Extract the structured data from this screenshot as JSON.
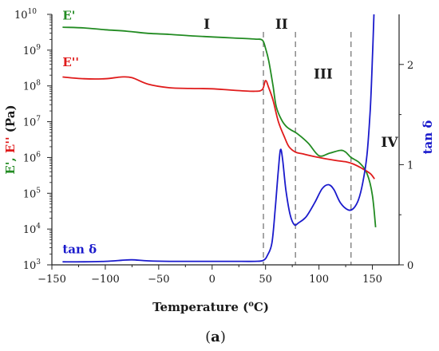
{
  "chart_data": {
    "type": "line",
    "xlabel_main": "Temperature (",
    "xlabel_unit_sup": "o",
    "xlabel_tail": "C)",
    "ylabel_left_parts": [
      "E', ",
      "E'' ",
      "(Pa)"
    ],
    "ylabel_left_colors": [
      "#228b22",
      "#e01b1b",
      "#1a1a1a"
    ],
    "ylabel_right": "tan δ",
    "ylabel_right_color": "#1a1acc",
    "subfigure_label_open": "(",
    "subfigure_label_letter": "a",
    "subfigure_label_close": ")",
    "xlim": [
      -150,
      175
    ],
    "ylim_left_log10": [
      3,
      10
    ],
    "ylim_right": [
      0,
      2.5
    ],
    "x_ticks": [
      {
        "v": -150,
        "label": "−150"
      },
      {
        "v": -100,
        "label": "−100"
      },
      {
        "v": -50,
        "label": "−50"
      },
      {
        "v": 0,
        "label": "0"
      },
      {
        "v": 50,
        "label": "50"
      },
      {
        "v": 100,
        "label": "100"
      },
      {
        "v": 150,
        "label": "150"
      }
    ],
    "y_left_ticks": [
      {
        "exp": 3,
        "base": "10",
        "sup": "3"
      },
      {
        "exp": 4,
        "base": "10",
        "sup": "4"
      },
      {
        "exp": 5,
        "base": "10",
        "sup": "5"
      },
      {
        "exp": 6,
        "base": "10",
        "sup": "6"
      },
      {
        "exp": 7,
        "base": "10",
        "sup": "7"
      },
      {
        "exp": 8,
        "base": "10",
        "sup": "8"
      },
      {
        "exp": 9,
        "base": "10",
        "sup": "9"
      },
      {
        "exp": 10,
        "base": "10",
        "sup": "10"
      }
    ],
    "y_right_ticks": [
      {
        "v": 0,
        "label": "0"
      },
      {
        "v": 1,
        "label": "1"
      },
      {
        "v": 2,
        "label": "2"
      }
    ],
    "vlines": [
      48,
      78,
      130
    ],
    "regions": [
      {
        "label": "I",
        "x": -5,
        "log10": 9.6
      },
      {
        "label": "II",
        "x": 65,
        "log10": 9.6
      },
      {
        "label": "III",
        "x": 104,
        "log10": 8.2
      },
      {
        "label": "IV",
        "x": 166,
        "log10": 6.3
      }
    ],
    "series": [
      {
        "name": "E'",
        "color": "#228b22",
        "axis": "left",
        "label_pos": {
          "x": -140,
          "log10": 9.85
        },
        "points": [
          [
            -140,
            9.64
          ],
          [
            -120,
            9.62
          ],
          [
            -100,
            9.57
          ],
          [
            -80,
            9.53
          ],
          [
            -60,
            9.47
          ],
          [
            -40,
            9.44
          ],
          [
            -20,
            9.4
          ],
          [
            0,
            9.37
          ],
          [
            20,
            9.34
          ],
          [
            40,
            9.31
          ],
          [
            47,
            9.28
          ],
          [
            50,
            9.05
          ],
          [
            53,
            8.7
          ],
          [
            57,
            8.0
          ],
          [
            60,
            7.42
          ],
          [
            65,
            7.05
          ],
          [
            70,
            6.85
          ],
          [
            75,
            6.75
          ],
          [
            80,
            6.66
          ],
          [
            90,
            6.4
          ],
          [
            100,
            6.05
          ],
          [
            110,
            6.12
          ],
          [
            120,
            6.2
          ],
          [
            125,
            6.15
          ],
          [
            130,
            6.0
          ],
          [
            138,
            5.85
          ],
          [
            145,
            5.55
          ],
          [
            150,
            4.95
          ],
          [
            153,
            4.05
          ]
        ]
      },
      {
        "name": "E''",
        "color": "#e01b1b",
        "axis": "left",
        "label_pos": {
          "x": -140,
          "log10": 8.55
        },
        "points": [
          [
            -140,
            8.25
          ],
          [
            -120,
            8.2
          ],
          [
            -100,
            8.2
          ],
          [
            -85,
            8.25
          ],
          [
            -75,
            8.23
          ],
          [
            -60,
            8.05
          ],
          [
            -40,
            7.95
          ],
          [
            -20,
            7.93
          ],
          [
            0,
            7.92
          ],
          [
            20,
            7.88
          ],
          [
            40,
            7.85
          ],
          [
            47,
            7.9
          ],
          [
            50,
            8.15
          ],
          [
            53,
            7.95
          ],
          [
            57,
            7.6
          ],
          [
            62,
            7.0
          ],
          [
            68,
            6.55
          ],
          [
            72,
            6.3
          ],
          [
            78,
            6.15
          ],
          [
            85,
            6.1
          ],
          [
            100,
            6.0
          ],
          [
            115,
            5.92
          ],
          [
            125,
            5.88
          ],
          [
            132,
            5.82
          ],
          [
            140,
            5.7
          ],
          [
            148,
            5.55
          ],
          [
            152,
            5.4
          ]
        ]
      },
      {
        "name": "tan δ",
        "color": "#1a1acc",
        "axis": "right",
        "label_pos": {
          "x": -140,
          "log10": 3.32
        },
        "points": [
          [
            -140,
            0.03
          ],
          [
            -120,
            0.03
          ],
          [
            -100,
            0.035
          ],
          [
            -85,
            0.045
          ],
          [
            -75,
            0.05
          ],
          [
            -60,
            0.04
          ],
          [
            -40,
            0.035
          ],
          [
            -20,
            0.035
          ],
          [
            0,
            0.035
          ],
          [
            20,
            0.035
          ],
          [
            40,
            0.035
          ],
          [
            48,
            0.045
          ],
          [
            52,
            0.1
          ],
          [
            56,
            0.22
          ],
          [
            59,
            0.55
          ],
          [
            62,
            0.95
          ],
          [
            64,
            1.15
          ],
          [
            66,
            1.05
          ],
          [
            69,
            0.75
          ],
          [
            73,
            0.5
          ],
          [
            77,
            0.4
          ],
          [
            81,
            0.42
          ],
          [
            88,
            0.48
          ],
          [
            96,
            0.62
          ],
          [
            103,
            0.76
          ],
          [
            109,
            0.8
          ],
          [
            114,
            0.75
          ],
          [
            120,
            0.62
          ],
          [
            127,
            0.55
          ],
          [
            132,
            0.56
          ],
          [
            137,
            0.65
          ],
          [
            141,
            0.82
          ],
          [
            145,
            1.1
          ],
          [
            148,
            1.55
          ],
          [
            150,
            2.05
          ],
          [
            151.5,
            2.5
          ]
        ]
      }
    ]
  }
}
